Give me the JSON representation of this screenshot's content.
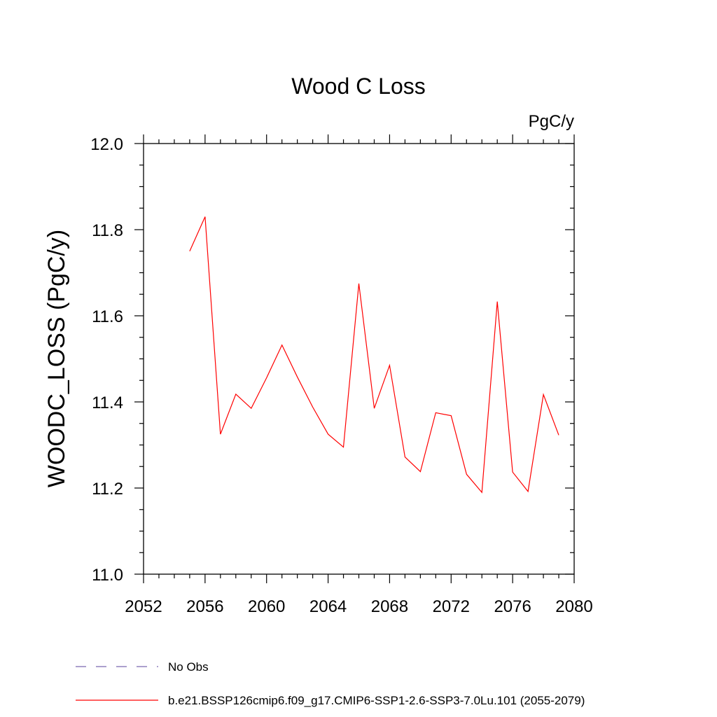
{
  "chart_data": {
    "type": "line",
    "title": "Wood C Loss",
    "units_label": "PgC/y",
    "ylabel": "WOODC_LOSS  (PgC/y)",
    "xlabel": "",
    "xlim": [
      2052,
      2080
    ],
    "ylim": [
      11.0,
      12.0
    ],
    "xticks": [
      2052,
      2056,
      2060,
      2064,
      2068,
      2072,
      2076,
      2080
    ],
    "yticks": [
      "11.0",
      "11.2",
      "11.4",
      "11.6",
      "11.8",
      "12.0"
    ],
    "grid": false,
    "legend_position": "bottom-left",
    "series": [
      {
        "name": "b.e21.BSSP126cmip6.f09_g17.CMIP6-SSP1-2.6-SSP3-7.0Lu.101 (2055-2079)",
        "color": "#ff0000",
        "style": "solid",
        "x": [
          2055,
          2056,
          2057,
          2058,
          2059,
          2060,
          2061,
          2062,
          2063,
          2064,
          2065,
          2066,
          2067,
          2068,
          2069,
          2070,
          2071,
          2072,
          2073,
          2074,
          2075,
          2076,
          2077,
          2078,
          2079
        ],
        "y": [
          11.75,
          11.83,
          11.325,
          11.418,
          11.385,
          11.456,
          11.532,
          11.458,
          11.388,
          11.325,
          11.295,
          11.675,
          11.385,
          11.485,
          11.272,
          11.238,
          11.375,
          11.368,
          11.232,
          11.19,
          11.633,
          11.237,
          11.192,
          11.417,
          11.323
        ]
      }
    ],
    "legend": [
      {
        "label": "No Obs",
        "color": "#7b68b0",
        "style": "dashed"
      },
      {
        "label": "b.e21.BSSP126cmip6.f09_g17.CMIP6-SSP1-2.6-SSP3-7.0Lu.101 (2055-2079)",
        "color": "#ff0000",
        "style": "solid"
      }
    ]
  }
}
